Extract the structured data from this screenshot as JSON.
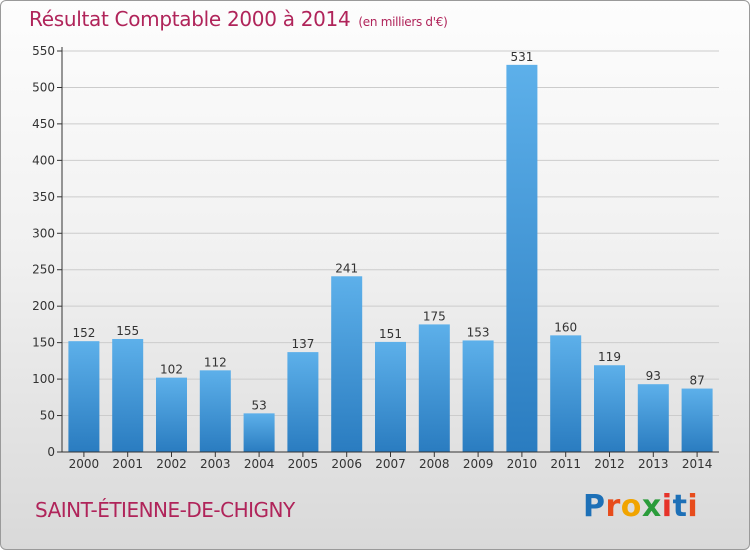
{
  "header": {
    "title": "Résultat Comptable 2000 à 2014",
    "unit": "(en milliers d'€)"
  },
  "footer": {
    "location": "SAINT-ÉTIENNE-DE-CHIGNY",
    "logo_letters": [
      "P",
      "r",
      "o",
      "x",
      "i",
      "t",
      "i"
    ],
    "logo_colors": [
      "#1d70b7",
      "#e74c1c",
      "#f1a400",
      "#2b9c3b",
      "#e6332a",
      "#1d70b7",
      "#e74c1c"
    ]
  },
  "colors": {
    "title": "#b0245a",
    "bar_top": "#5db0ea",
    "bar_bottom": "#2a7cc0",
    "grid": "#cccccc",
    "axis": "#333333"
  },
  "chart_data": {
    "type": "bar",
    "title": "Résultat Comptable 2000 à 2014",
    "subtitle": "(en milliers d'€)",
    "xlabel": "",
    "ylabel": "",
    "categories": [
      "2000",
      "2001",
      "2002",
      "2003",
      "2004",
      "2005",
      "2006",
      "2007",
      "2008",
      "2009",
      "2010",
      "2011",
      "2012",
      "2013",
      "2014"
    ],
    "values": [
      152,
      155,
      102,
      112,
      53,
      137,
      241,
      151,
      175,
      153,
      531,
      160,
      119,
      93,
      87
    ],
    "ylim": [
      0,
      550
    ],
    "yticks": [
      0,
      50,
      100,
      150,
      200,
      250,
      300,
      350,
      400,
      450,
      500,
      550
    ],
    "grid": true
  }
}
